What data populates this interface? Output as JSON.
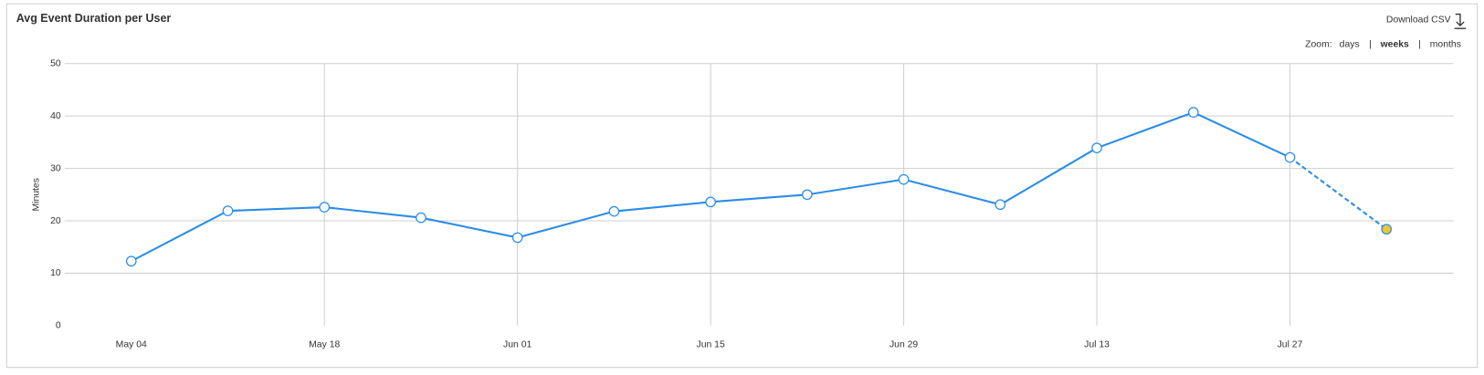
{
  "chart_data": {
    "type": "line",
    "title": "Avg Event Duration per User",
    "download": "Download CSV",
    "zoom": {
      "label": "Zoom:",
      "options": [
        "days",
        "weeks",
        "months"
      ],
      "selected": "weeks",
      "separator": "|"
    },
    "ylabel": "Minutes",
    "categories": [
      "May 04",
      null,
      "May 18",
      null,
      "Jun 01",
      null,
      "Jun 15",
      null,
      "Jun 29",
      null,
      "Jul 13",
      null,
      "Jul 27",
      null
    ],
    "series": [
      {
        "name": "Minutes",
        "color": "#2b8ce8",
        "values": [
          12.3,
          21.9,
          22.6,
          20.6,
          16.8,
          21.8,
          23.6,
          25.0,
          27.9,
          23.1,
          33.9,
          40.7,
          32.1,
          18.4
        ]
      }
    ],
    "dashed_last_segment": true,
    "last_point_color": "#f2c530",
    "ylim": [
      0,
      50
    ],
    "yticks": [
      0,
      10,
      20,
      30,
      40,
      50
    ],
    "grid": true
  }
}
